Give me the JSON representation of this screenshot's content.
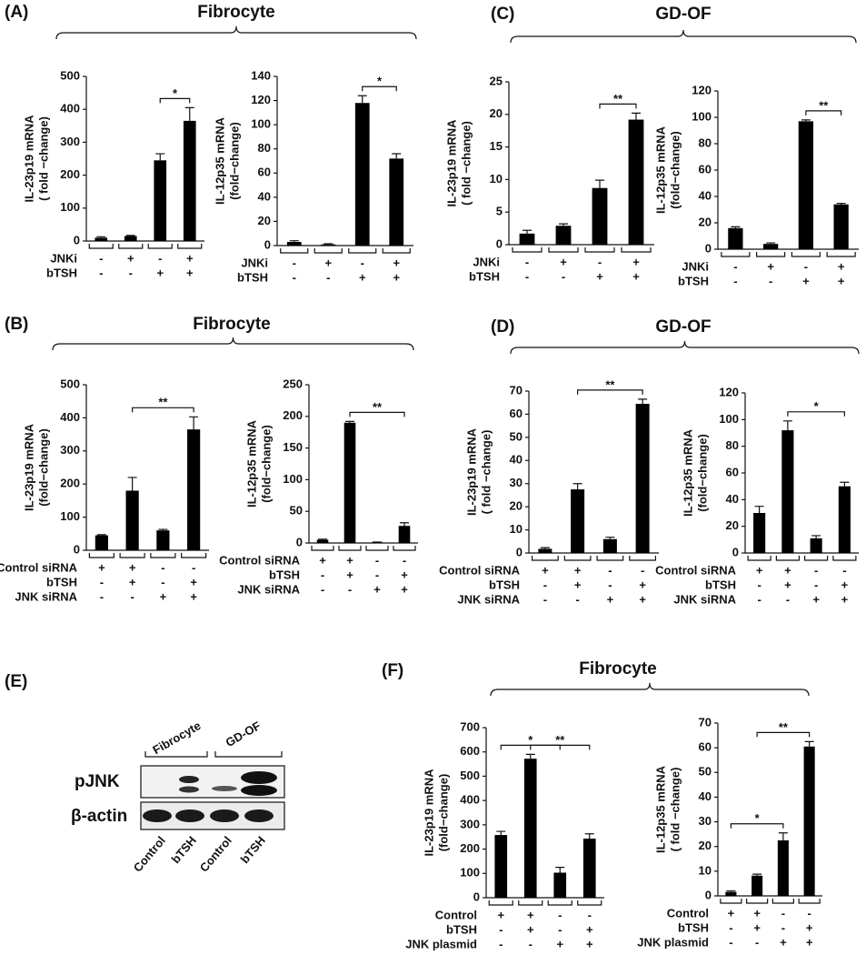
{
  "panels": [
    {
      "label": "(A)",
      "title": "Fibrocyte"
    },
    {
      "label": "(C)",
      "title": "GD-OF"
    },
    {
      "label": "(B)",
      "title": "Fibrocyte"
    },
    {
      "label": "(D)",
      "title": "GD-OF"
    },
    {
      "label": "(E)"
    },
    {
      "label": "(F)",
      "title": "Fibrocyte"
    }
  ],
  "blot": {
    "groups": [
      "Fibrocyte",
      "GD-OF"
    ],
    "row_labels": [
      "pJNK",
      "β-actin"
    ],
    "lanes": [
      "Control",
      "bTSH",
      "Control",
      "bTSH"
    ]
  },
  "chart_data": [
    {
      "type": "bar",
      "ylabel": [
        "IL-23p19 mRNA",
        "( fold −change)"
      ],
      "ylim": [
        0,
        500
      ],
      "yticks": [
        0,
        100,
        200,
        300,
        400,
        500
      ],
      "values": [
        10,
        15,
        245,
        365
      ],
      "errors": [
        3,
        2,
        20,
        40
      ],
      "color": "#000000",
      "conditions": [
        {
          "name": "JNKi",
          "signs": [
            "-",
            "+",
            "-",
            "+"
          ]
        },
        {
          "name": "bTSH",
          "signs": [
            "-",
            "-",
            "+",
            "+"
          ]
        }
      ],
      "significance": [
        {
          "pair": [
            2,
            3
          ],
          "label": "*"
        }
      ]
    },
    {
      "type": "bar",
      "ylabel": [
        "IL-12p35 mRNA",
        "(fold−change)"
      ],
      "ylim": [
        0,
        140
      ],
      "yticks": [
        0,
        20,
        40,
        60,
        80,
        100,
        120,
        140
      ],
      "values": [
        3,
        1,
        118,
        72
      ],
      "errors": [
        1,
        0.5,
        6,
        4
      ],
      "color": "#000000",
      "conditions": [
        {
          "name": "JNKi",
          "signs": [
            "-",
            "+",
            "-",
            "+"
          ]
        },
        {
          "name": "bTSH",
          "signs": [
            "-",
            "-",
            "+",
            "+"
          ]
        }
      ],
      "significance": [
        {
          "pair": [
            2,
            3
          ],
          "label": "*"
        }
      ]
    },
    {
      "type": "bar",
      "ylabel": [
        "IL-23p19 mRNA",
        "( fold −change)"
      ],
      "ylim": [
        0,
        25
      ],
      "yticks": [
        0,
        5,
        10,
        15,
        20,
        25
      ],
      "values": [
        1.7,
        2.9,
        8.7,
        19.2
      ],
      "errors": [
        0.5,
        0.3,
        1.2,
        1
      ],
      "color": "#000000",
      "conditions": [
        {
          "name": "JNKi",
          "signs": [
            "-",
            "+",
            "-",
            "+"
          ]
        },
        {
          "name": "bTSH",
          "signs": [
            "-",
            "-",
            "+",
            "+"
          ]
        }
      ],
      "significance": [
        {
          "pair": [
            2,
            3
          ],
          "label": "**"
        }
      ]
    },
    {
      "type": "bar",
      "ylabel": [
        "IL-12p35 mRNA",
        "(fold−change)"
      ],
      "ylim": [
        0,
        120
      ],
      "yticks": [
        0,
        20,
        40,
        60,
        80,
        100,
        120
      ],
      "values": [
        16,
        4,
        97,
        34
      ],
      "errors": [
        1,
        0.8,
        1,
        0.8
      ],
      "color": "#000000",
      "conditions": [
        {
          "name": "JNKi",
          "signs": [
            "-",
            "+",
            "-",
            "+"
          ]
        },
        {
          "name": "bTSH",
          "signs": [
            "-",
            "-",
            "+",
            "+"
          ]
        }
      ],
      "significance": [
        {
          "pair": [
            2,
            3
          ],
          "label": "**"
        }
      ]
    },
    {
      "type": "bar",
      "ylabel": [
        "IL-23p19 mRNA",
        "(fold−change)"
      ],
      "ylim": [
        0,
        500
      ],
      "yticks": [
        0,
        100,
        200,
        300,
        400,
        500
      ],
      "values": [
        45,
        180,
        60,
        365
      ],
      "errors": [
        2,
        40,
        3,
        38
      ],
      "color": "#000000",
      "conditions": [
        {
          "name": "Control siRNA",
          "signs": [
            "+",
            "+",
            "-",
            "-"
          ]
        },
        {
          "name": "bTSH",
          "signs": [
            "-",
            "+",
            "-",
            "+"
          ]
        },
        {
          "name": "JNK siRNA",
          "signs": [
            "-",
            "-",
            "+",
            "+"
          ]
        }
      ],
      "significance": [
        {
          "pair": [
            1,
            3
          ],
          "label": "**"
        }
      ]
    },
    {
      "type": "bar",
      "ylabel": [
        "IL-12p35 mRNA",
        "(fold−change)"
      ],
      "ylim": [
        0,
        250
      ],
      "yticks": [
        0,
        50,
        100,
        150,
        200,
        250
      ],
      "values": [
        5,
        190,
        1,
        27
      ],
      "errors": [
        1,
        2,
        0.5,
        5
      ],
      "color": "#000000",
      "conditions": [
        {
          "name": "Control siRNA",
          "signs": [
            "+",
            "+",
            "-",
            "-"
          ]
        },
        {
          "name": "bTSH",
          "signs": [
            "-",
            "+",
            "-",
            "+"
          ]
        },
        {
          "name": "JNK siRNA",
          "signs": [
            "-",
            "-",
            "+",
            "+"
          ]
        }
      ],
      "significance": [
        {
          "pair": [
            1,
            3
          ],
          "label": "**"
        }
      ]
    },
    {
      "type": "bar",
      "ylabel": [
        "IL-23p19 mRNA",
        "( fold −change)"
      ],
      "ylim": [
        0,
        70
      ],
      "yticks": [
        0,
        10,
        20,
        30,
        40,
        50,
        60,
        70
      ],
      "values": [
        1.8,
        27.5,
        6,
        64.5
      ],
      "errors": [
        0.5,
        2.5,
        0.8,
        2
      ],
      "color": "#000000",
      "conditions": [
        {
          "name": "Control siRNA",
          "signs": [
            "+",
            "+",
            "-",
            "-"
          ]
        },
        {
          "name": "bTSH",
          "signs": [
            "-",
            "+",
            "-",
            "+"
          ]
        },
        {
          "name": "JNK siRNA",
          "signs": [
            "-",
            "-",
            "+",
            "+"
          ]
        }
      ],
      "significance": [
        {
          "pair": [
            1,
            3
          ],
          "label": "**"
        }
      ]
    },
    {
      "type": "bar",
      "ylabel": [
        "IL-12p35 mRNA",
        "(fold−change)"
      ],
      "ylim": [
        0,
        120
      ],
      "yticks": [
        0,
        20,
        40,
        60,
        80,
        100,
        120
      ],
      "values": [
        30,
        92,
        11,
        50
      ],
      "errors": [
        5,
        7,
        2,
        3
      ],
      "color": "#000000",
      "conditions": [
        {
          "name": "Control siRNA",
          "signs": [
            "+",
            "+",
            "-",
            "-"
          ]
        },
        {
          "name": "bTSH",
          "signs": [
            "-",
            "+",
            "-",
            "+"
          ]
        },
        {
          "name": "JNK siRNA",
          "signs": [
            "-",
            "-",
            "+",
            "+"
          ]
        }
      ],
      "significance": [
        {
          "pair": [
            1,
            3
          ],
          "label": "*"
        }
      ]
    },
    {
      "type": "bar",
      "ylabel": [
        "IL-23p19 mRNA",
        "(fold−change)"
      ],
      "ylim": [
        0,
        700
      ],
      "yticks": [
        0,
        100,
        200,
        300,
        400,
        500,
        600,
        700
      ],
      "values": [
        258,
        572,
        103,
        243
      ],
      "errors": [
        15,
        18,
        22,
        20
      ],
      "color": "#000000",
      "conditions": [
        {
          "name": "Control",
          "signs": [
            "+",
            "+",
            "-",
            "-"
          ]
        },
        {
          "name": "bTSH",
          "signs": [
            "-",
            "+",
            "-",
            "+"
          ]
        },
        {
          "name": "JNK plasmid",
          "signs": [
            "-",
            "-",
            "+",
            "+"
          ]
        }
      ],
      "significance": [
        {
          "pair": [
            0,
            2
          ],
          "label": "*"
        },
        {
          "pair": [
            1,
            3
          ],
          "label": "**"
        }
      ]
    },
    {
      "type": "bar",
      "ylabel": [
        "IL-12p35 mRNA",
        "( fold −change)"
      ],
      "ylim": [
        0,
        70
      ],
      "yticks": [
        0,
        10,
        20,
        30,
        40,
        50,
        60,
        70
      ],
      "values": [
        1.6,
        8.2,
        22.5,
        60.5
      ],
      "errors": [
        0.4,
        0.6,
        3,
        2
      ],
      "color": "#000000",
      "conditions": [
        {
          "name": "Control",
          "signs": [
            "+",
            "+",
            "-",
            "-"
          ]
        },
        {
          "name": "bTSH",
          "signs": [
            "-",
            "+",
            "-",
            "+"
          ]
        },
        {
          "name": "JNK plasmid",
          "signs": [
            "-",
            "-",
            "+",
            "+"
          ]
        }
      ],
      "significance": [
        {
          "pair": [
            0,
            2
          ],
          "label": "*"
        },
        {
          "pair": [
            1,
            3
          ],
          "label": "**"
        }
      ]
    }
  ]
}
